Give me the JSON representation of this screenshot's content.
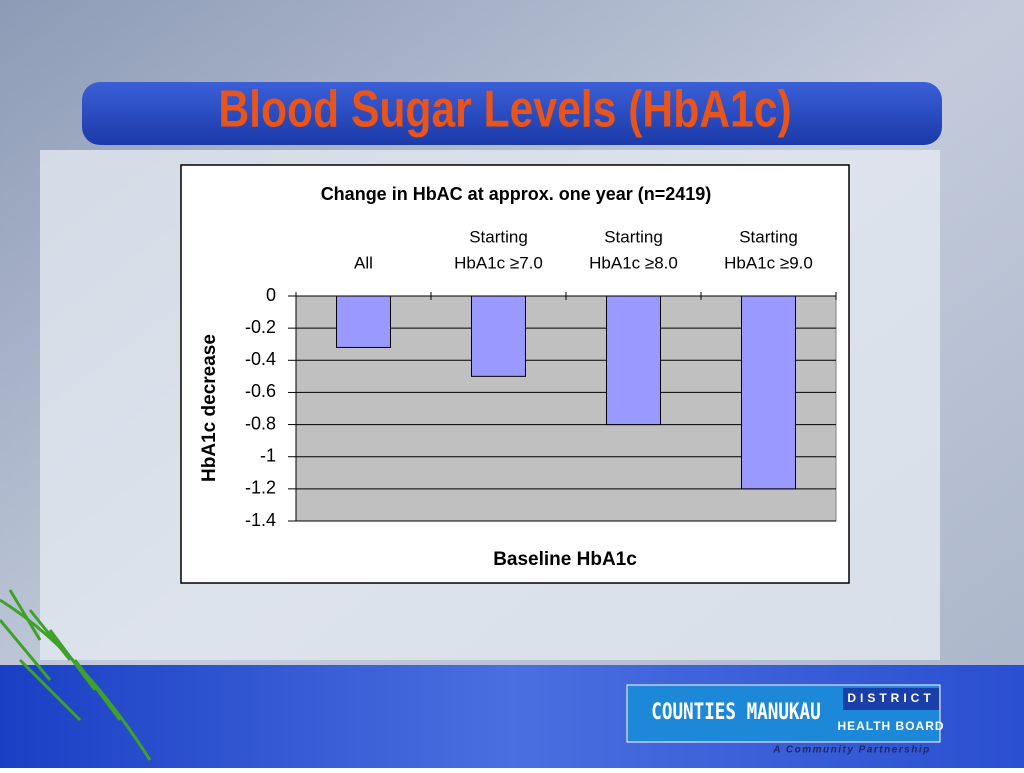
{
  "slide": {
    "title": "Blood Sugar Levels (HbA1c)",
    "logo": {
      "name": "COUNTIES MANUKAU",
      "line1": "DISTRICT",
      "line2": "HEALTH BOARD",
      "tagline": "A Community Partnership"
    }
  },
  "chart_data": {
    "type": "bar",
    "title": "Change in HbAC at approx. one year (n=2419)",
    "categories": [
      [
        "All"
      ],
      [
        "Starting",
        "HbA1c ≥7.0"
      ],
      [
        "Starting",
        "HbA1c ≥8.0"
      ],
      [
        "Starting",
        "HbA1c ≥9.0"
      ]
    ],
    "values": [
      -0.32,
      -0.5,
      -0.8,
      -1.2
    ],
    "color": "#9999ff",
    "x_label": "Baseline HbA1c",
    "y_label": "HbA1c decrease",
    "ylim": [
      -1.4,
      0
    ],
    "yticks": [
      0,
      -0.2,
      -0.4,
      -0.6,
      -0.8,
      -1,
      -1.2,
      -1.4
    ],
    "grid": true
  }
}
